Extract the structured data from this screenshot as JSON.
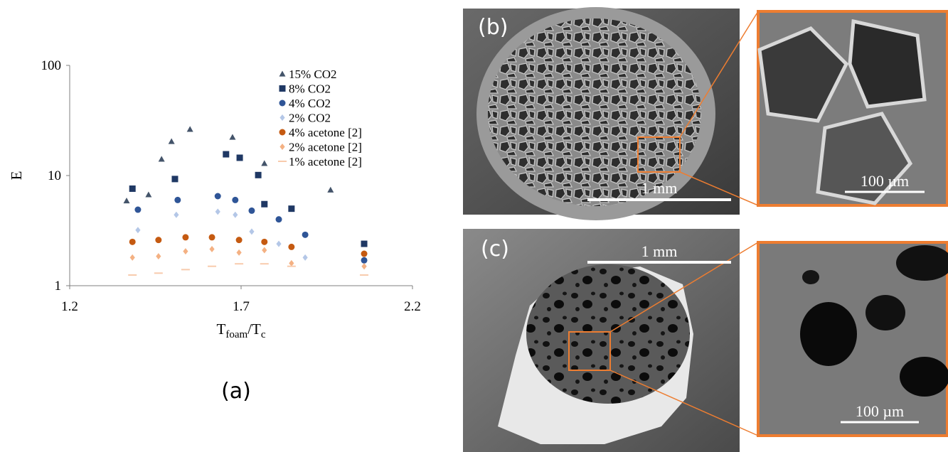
{
  "chart_data": {
    "type": "scatter",
    "ylabel": "E",
    "xlabel": [
      "T",
      "foam",
      "/T",
      "c"
    ],
    "xlim": [
      1.2,
      2.2
    ],
    "xticks": [
      1.2,
      1.7,
      2.2
    ],
    "ylim": [
      1,
      100
    ],
    "yticks": [
      1,
      10,
      100
    ],
    "yscale": "log",
    "legend": "top-right",
    "series": [
      {
        "name": "15% CO2",
        "color": "#44546a",
        "marker": "triangle",
        "x": [
          1.366,
          1.43,
          1.468,
          1.497,
          1.551,
          1.675,
          1.768,
          1.961
        ],
        "values": [
          5.9,
          6.7,
          14.1,
          20.4,
          26.3,
          22.3,
          12.9,
          7.4
        ]
      },
      {
        "name": "8% CO2",
        "color": "#1f3864",
        "marker": "square",
        "x": [
          1.383,
          1.507,
          1.656,
          1.696,
          1.75,
          1.768,
          1.847,
          2.059
        ],
        "values": [
          7.6,
          9.3,
          15.6,
          14.5,
          10.1,
          5.5,
          5.0,
          2.4
        ]
      },
      {
        "name": "4% CO2",
        "color": "#2f5597",
        "marker": "circle",
        "x": [
          1.399,
          1.515,
          1.632,
          1.683,
          1.731,
          1.81,
          1.887,
          2.059
        ],
        "values": [
          4.9,
          6.0,
          6.5,
          6.0,
          4.8,
          4.0,
          2.9,
          1.7
        ]
      },
      {
        "name": "2% CO2",
        "color": "#b4c7e7",
        "marker": "diamond",
        "x": [
          1.399,
          1.511,
          1.632,
          1.683,
          1.731,
          1.81,
          1.887,
          2.059
        ],
        "values": [
          3.2,
          4.4,
          4.7,
          4.4,
          3.1,
          2.4,
          1.8,
          1.5
        ]
      },
      {
        "name": "4% acetone [2]",
        "color": "#c55a11",
        "marker": "circle",
        "x": [
          1.383,
          1.459,
          1.538,
          1.615,
          1.694,
          1.768,
          1.847,
          2.059
        ],
        "values": [
          2.5,
          2.6,
          2.75,
          2.75,
          2.6,
          2.5,
          2.25,
          1.95
        ]
      },
      {
        "name": "2% acetone [2]",
        "color": "#f4b183",
        "marker": "diamond",
        "x": [
          1.383,
          1.459,
          1.538,
          1.615,
          1.694,
          1.768,
          1.847,
          2.059
        ],
        "values": [
          1.8,
          1.85,
          2.05,
          2.15,
          2.0,
          2.1,
          1.6,
          1.5
        ]
      },
      {
        "name": "1% acetone [2]",
        "color": "#f8cbad",
        "marker": "dash",
        "x": [
          1.383,
          1.459,
          1.538,
          1.615,
          1.694,
          1.768,
          1.847,
          2.059
        ],
        "values": [
          1.25,
          1.3,
          1.4,
          1.5,
          1.58,
          1.58,
          1.5,
          1.25
        ]
      }
    ]
  },
  "figure": {
    "labels": [
      "(a)",
      "(b)",
      "(c)"
    ],
    "scale_bars": [
      "1 mm",
      "100 µm",
      "1 mm",
      "100 µm"
    ]
  }
}
